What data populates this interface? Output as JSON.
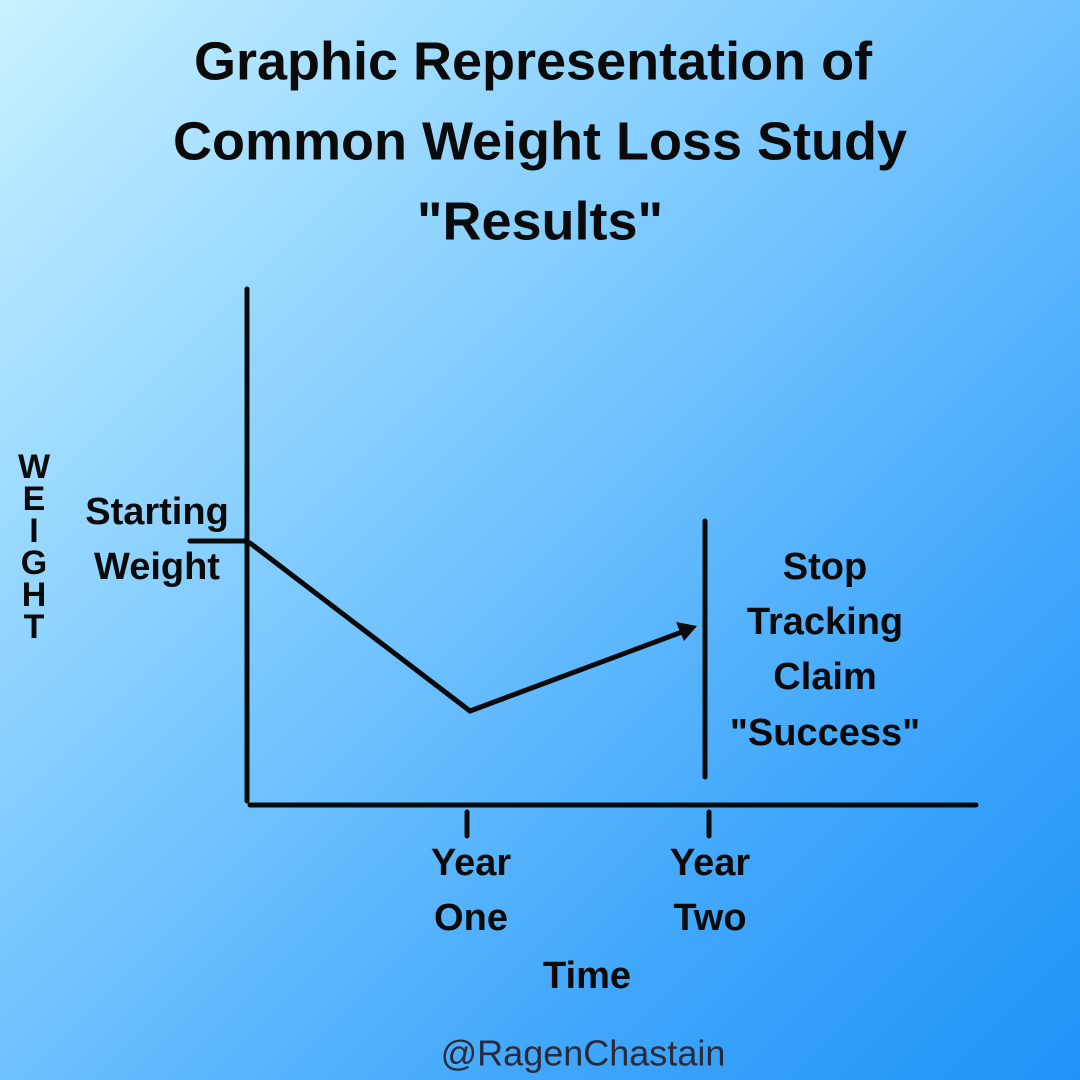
{
  "title": {
    "lines": [
      "Graphic Representation of",
      "Common Weight Loss Study",
      "\"Results\""
    ]
  },
  "y_axis_label": "WEIGHT",
  "start_label": {
    "lines": [
      "Starting",
      "Weight"
    ]
  },
  "x_ticks": [
    {
      "lines": [
        "Year",
        "One"
      ]
    },
    {
      "lines": [
        "Year",
        "Two"
      ]
    }
  ],
  "x_axis_label": "Time",
  "annotation": {
    "lines": [
      "Stop",
      "Tracking",
      "Claim",
      "\"Success\""
    ]
  },
  "credit": "@RagenChastain"
}
